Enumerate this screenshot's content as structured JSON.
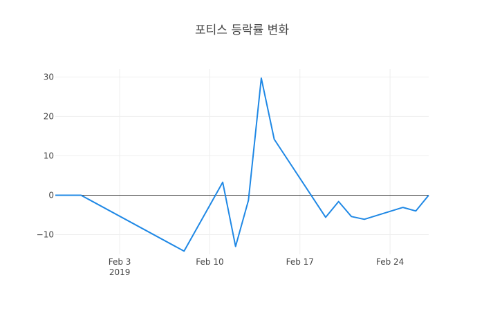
{
  "chart_data": {
    "type": "line",
    "title": "포티스 등락률 변화",
    "xlabel": "",
    "ylabel": "",
    "x": [
      "2019-01-29",
      "2019-01-31",
      "2019-02-08",
      "2019-02-11",
      "2019-02-12",
      "2019-02-13",
      "2019-02-14",
      "2019-02-15",
      "2019-02-19",
      "2019-02-20",
      "2019-02-21",
      "2019-02-22",
      "2019-02-25",
      "2019-02-26",
      "2019-02-27"
    ],
    "series": [
      {
        "values": [
          0,
          0,
          -14.2,
          3.3,
          -13.0,
          -1.3,
          29.7,
          14.2,
          -5.6,
          -1.6,
          -5.4,
          -6.1,
          -3.1,
          -4.0,
          0
        ]
      }
    ],
    "xlim": [
      "2019-01-29",
      "2019-02-27"
    ],
    "ylim": [
      -15,
      32
    ],
    "x_ticks": [
      {
        "date": "2019-02-03",
        "label": "Feb 3",
        "sublabel": "2019"
      },
      {
        "date": "2019-02-10",
        "label": "Feb 10",
        "sublabel": ""
      },
      {
        "date": "2019-02-17",
        "label": "Feb 17",
        "sublabel": ""
      },
      {
        "date": "2019-02-24",
        "label": "Feb 24",
        "sublabel": ""
      }
    ],
    "y_ticks": [
      30,
      20,
      10,
      0,
      -10
    ],
    "y_tick_labels": [
      "30",
      "20",
      "10",
      "0",
      "−10"
    ],
    "grid": true,
    "zero_line": true,
    "legend": "none",
    "colors": {
      "line": "#1f88e5",
      "grid": "#eeeeee",
      "zero_line": "#444444",
      "text": "#444444"
    }
  }
}
